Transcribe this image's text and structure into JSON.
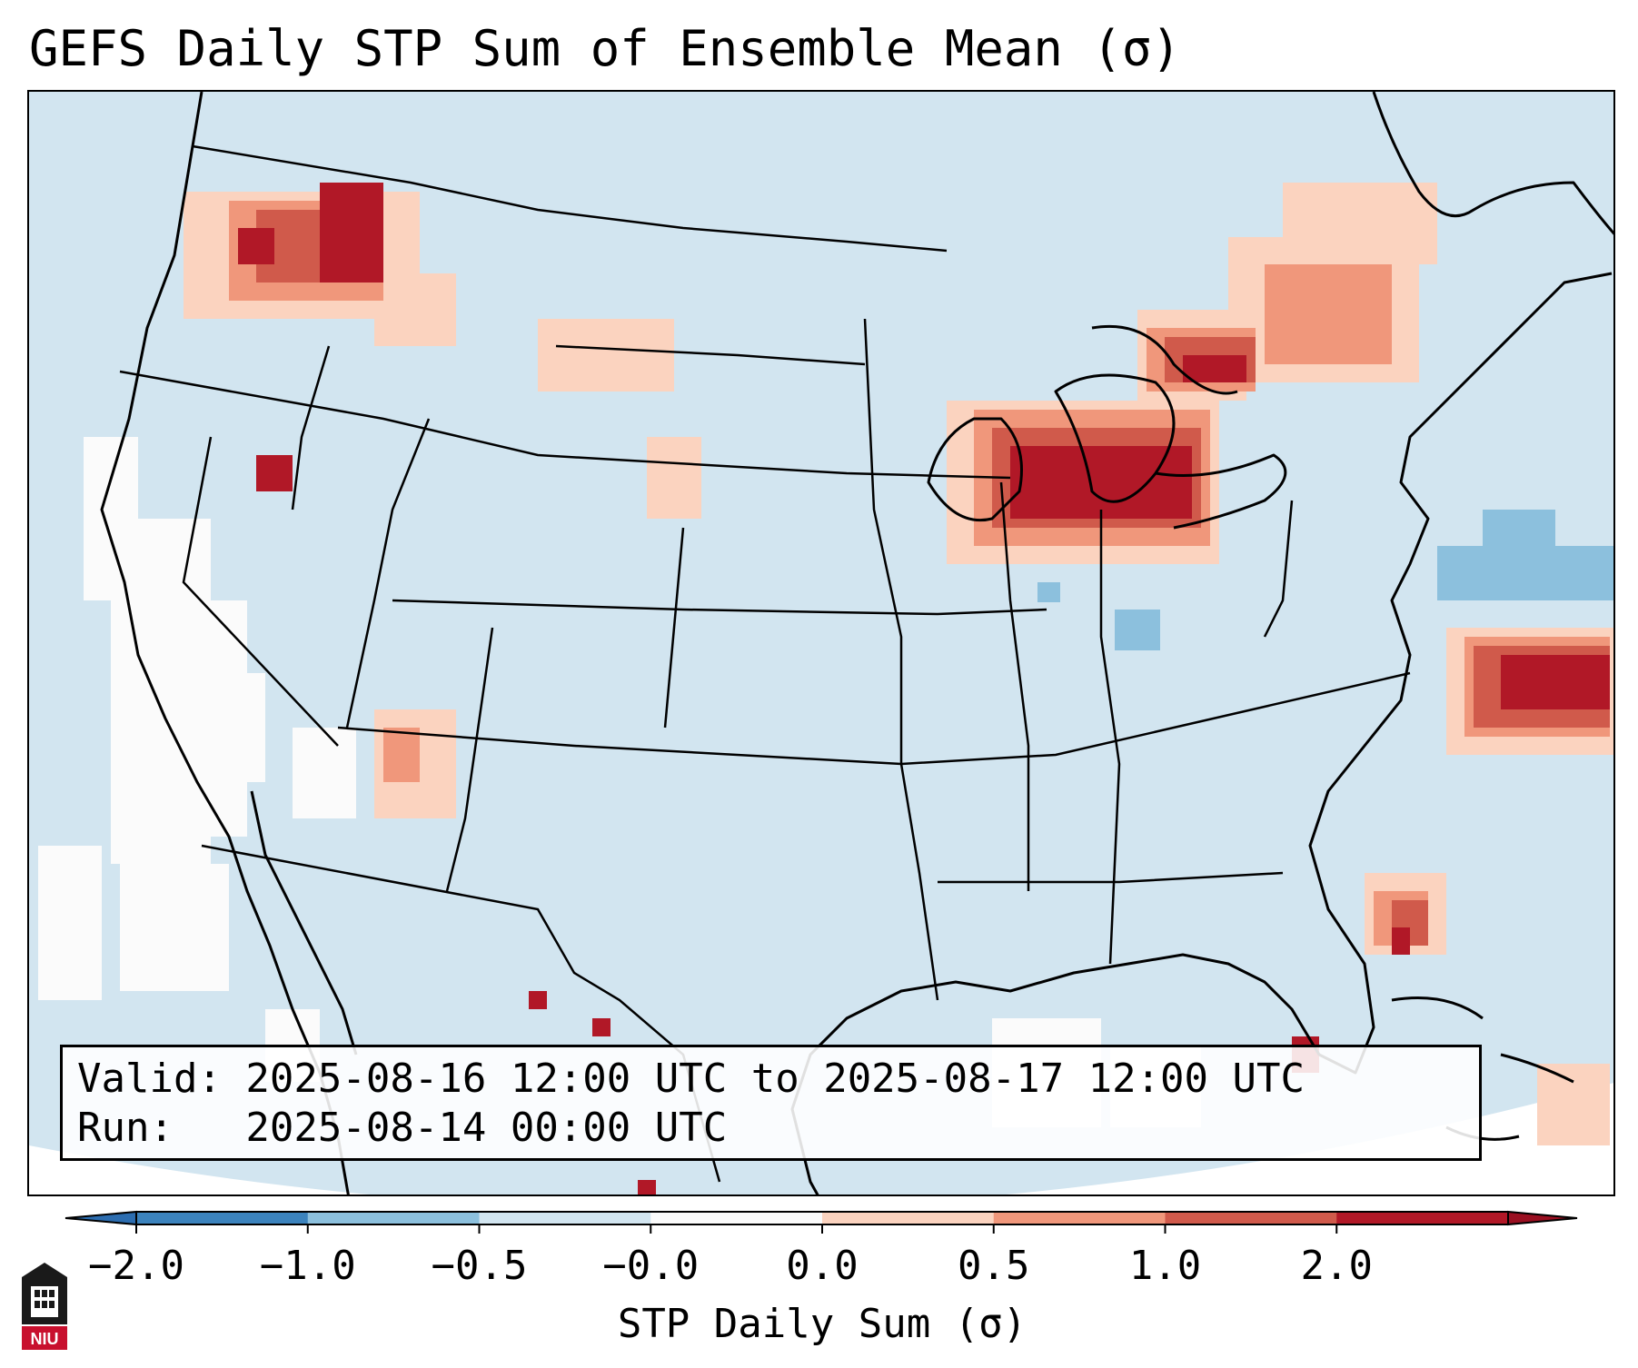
{
  "title": "GEFS Daily STP Sum of Ensemble Mean (σ)",
  "info": {
    "valid": "Valid: 2025-08-16 12:00 UTC to 2025-08-17 12:00 UTC",
    "run": "Run:   2025-08-14 00:00 UTC"
  },
  "colorbar": {
    "label": "STP Daily Sum (σ)",
    "ticks": [
      "−2.0",
      "−1.0",
      "−0.5",
      "−0.0",
      "0.0",
      "0.5",
      "1.0",
      "2.0"
    ],
    "colors": [
      "#3c83bd",
      "#8cc0dd",
      "#d2e5f0",
      "#fbfbfb",
      "#fbd3bf",
      "#f0977b",
      "#d05a4b",
      "#b11827"
    ],
    "extend": "both"
  },
  "map": {
    "region": "Contiguous United States, southern Canada, northern Mexico",
    "background_color": "#d2e5f0",
    "highlight_areas": [
      {
        "name": "Upper Great Lakes",
        "level": "≥ 2.0"
      },
      {
        "name": "Ontario / Quebec",
        "level": "0.0 – 2.0"
      },
      {
        "name": "Western Atlantic off Mid-Atlantic coast",
        "level": "≥ 2.0"
      },
      {
        "name": "Pacific Northwest / Idaho",
        "level": "≥ 2.0"
      },
      {
        "name": "Southwest Florida",
        "level": "≥ 2.0"
      }
    ]
  },
  "logo": {
    "text": "NIU"
  }
}
